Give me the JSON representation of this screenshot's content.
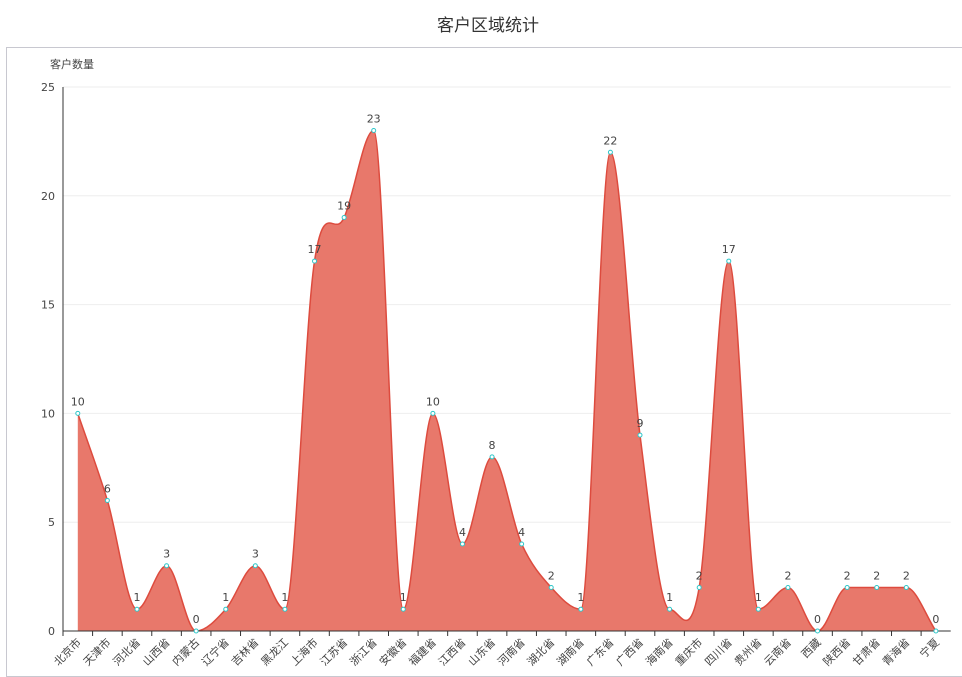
{
  "chart_data": {
    "type": "area",
    "title": "客户区域统计",
    "y_axis_label": "客户数量",
    "categories": [
      "北京市",
      "天津市",
      "河北省",
      "山西省",
      "内蒙古",
      "辽宁省",
      "吉林省",
      "黑龙江",
      "上海市",
      "江苏省",
      "浙江省",
      "安徽省",
      "福建省",
      "江西省",
      "山东省",
      "河南省",
      "湖北省",
      "湖南省",
      "广东省",
      "广西省",
      "海南省",
      "重庆市",
      "四川省",
      "贵州省",
      "云南省",
      "西藏",
      "陕西省",
      "甘肃省",
      "青海省",
      "宁夏"
    ],
    "values": [
      10,
      6,
      1,
      3,
      0,
      1,
      3,
      1,
      17,
      19,
      23,
      1,
      10,
      4,
      8,
      4,
      2,
      1,
      22,
      9,
      1,
      2,
      17,
      1,
      2,
      0,
      2,
      2,
      2,
      0
    ],
    "color": "#e8786b",
    "line_color": "#dd4b3e",
    "marker_color": "#2ec7c9",
    "ylim": [
      0,
      25
    ],
    "yticks": [
      0,
      5,
      10,
      15,
      20,
      25
    ],
    "grid": true
  }
}
